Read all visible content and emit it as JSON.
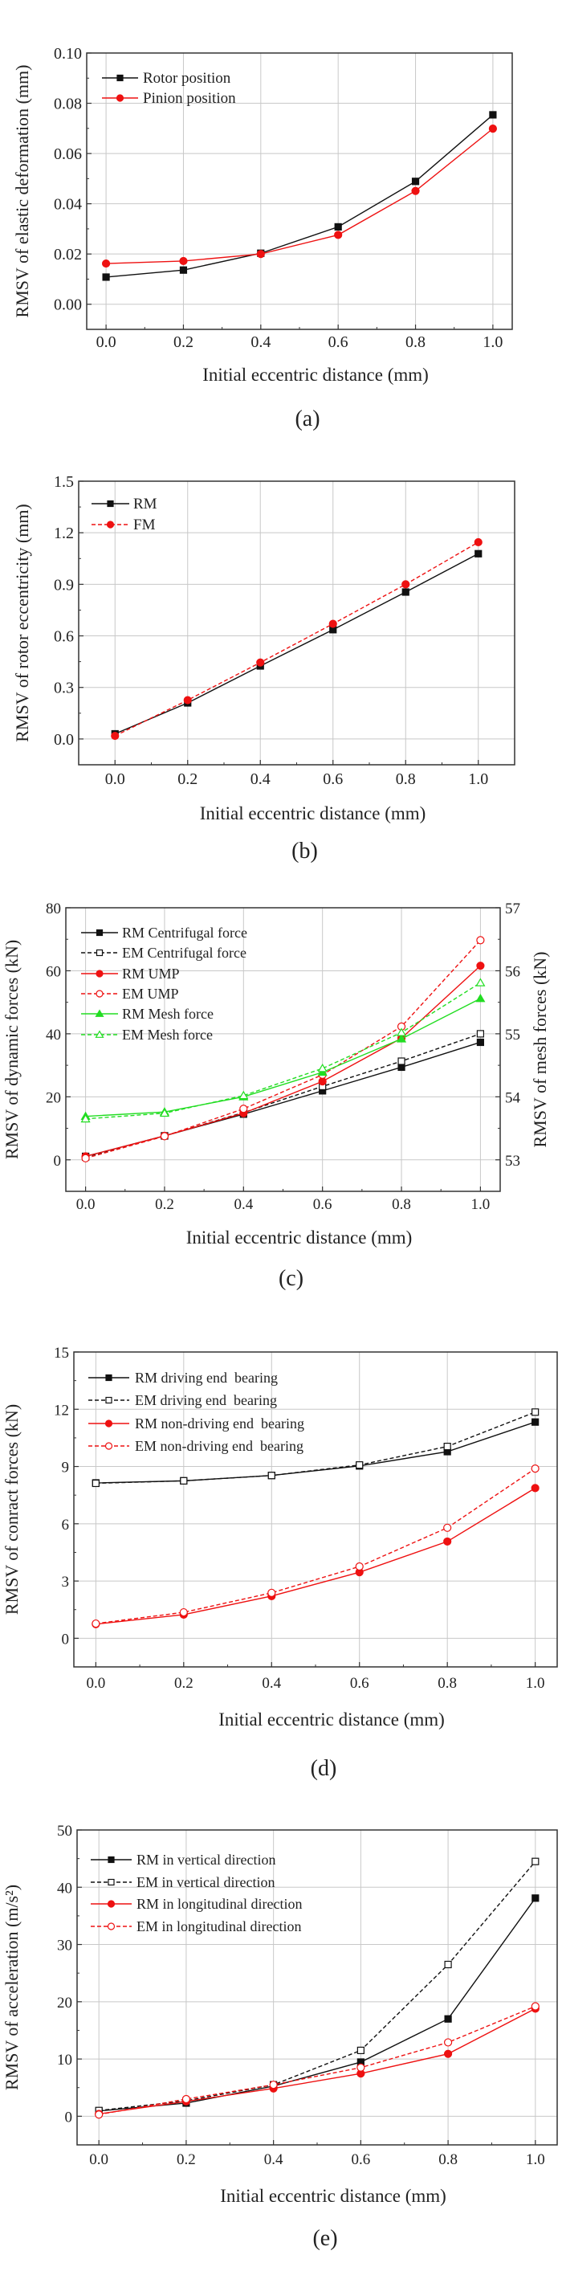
{
  "colors": {
    "black": "#111111",
    "red": "#ee1111",
    "green": "#22dd22",
    "grid": "#cccccc"
  },
  "chart_data": [
    {
      "type": "line",
      "panel_label": "(a)",
      "xlabel": "Initial eccentric distance (mm)",
      "ylabel": "RMSV of elastic deformation (mm)",
      "xlim": [
        -0.05,
        1.05
      ],
      "ylim": [
        -0.01,
        0.1
      ],
      "xticks": [
        0.0,
        0.2,
        0.4,
        0.6,
        0.8,
        1.0
      ],
      "xtick_labels": [
        "0.0",
        "0.2",
        "0.4",
        "0.6",
        "0.8",
        "1.0"
      ],
      "yticks": [
        0.0,
        0.02,
        0.04,
        0.06,
        0.08,
        0.1
      ],
      "ytick_labels": [
        "0.00",
        "0.02",
        "0.04",
        "0.06",
        "0.08",
        "0.10"
      ],
      "grid": true,
      "legend": "top-left",
      "x": [
        0.0,
        0.2,
        0.4,
        0.6,
        0.8,
        1.0
      ],
      "series": [
        {
          "name": "Rotor position",
          "color": "#111111",
          "marker": "square",
          "filled": true,
          "dashed": false,
          "values": [
            0.0108,
            0.0136,
            0.0203,
            0.0308,
            0.0489,
            0.0754
          ]
        },
        {
          "name": "Pinion position",
          "color": "#ee1111",
          "marker": "circle",
          "filled": true,
          "dashed": false,
          "values": [
            0.0162,
            0.0172,
            0.02,
            0.0276,
            0.0451,
            0.0699
          ]
        }
      ]
    },
    {
      "type": "line",
      "panel_label": "(b)",
      "xlabel": "Initial eccentric distance (mm)",
      "ylabel": "RMSV of rotor eccentricity (mm)",
      "xlim": [
        -0.1,
        1.1
      ],
      "ylim": [
        -0.15,
        1.5
      ],
      "xticks": [
        0.0,
        0.2,
        0.4,
        0.6,
        0.8,
        1.0
      ],
      "xtick_labels": [
        "0.0",
        "0.2",
        "0.4",
        "0.6",
        "0.8",
        "1.0"
      ],
      "yticks": [
        0.0,
        0.3,
        0.6,
        0.9,
        1.2,
        1.5
      ],
      "ytick_labels": [
        "0.0",
        "0.3",
        "0.6",
        "0.9",
        "1.2",
        "1.5"
      ],
      "grid": true,
      "legend": "top-left",
      "x": [
        0.0,
        0.2,
        0.4,
        0.6,
        0.8,
        1.0
      ],
      "series": [
        {
          "name": "RM",
          "color": "#111111",
          "marker": "square",
          "filled": true,
          "dashed": false,
          "values": [
            0.03,
            0.21,
            0.425,
            0.636,
            0.855,
            1.078
          ]
        },
        {
          "name": "FM",
          "color": "#ee1111",
          "marker": "circle",
          "filled": true,
          "dashed": true,
          "values": [
            0.018,
            0.226,
            0.445,
            0.67,
            0.9,
            1.145
          ]
        }
      ]
    },
    {
      "type": "line",
      "panel_label": "(c)",
      "xlabel": "Initial eccentric distance (mm)",
      "ylabel": "RMSV of dynamic forces (kN)",
      "ylabel_right": "RMSV of mesh forces (kN)",
      "xlim": [
        -0.05,
        1.05
      ],
      "ylim": [
        -10,
        80
      ],
      "ylim_right": [
        52.5,
        57
      ],
      "xticks": [
        0.0,
        0.2,
        0.4,
        0.6,
        0.8,
        1.0
      ],
      "xtick_labels": [
        "0.0",
        "0.2",
        "0.4",
        "0.6",
        "0.8",
        "1.0"
      ],
      "yticks": [
        0,
        20,
        40,
        60,
        80
      ],
      "ytick_labels": [
        "0",
        "20",
        "40",
        "60",
        "80"
      ],
      "yticks_right": [
        53,
        54,
        55,
        56,
        57
      ],
      "ytick_labels_right": [
        "53",
        "54",
        "55",
        "56",
        "57"
      ],
      "grid": true,
      "legend": "top-left",
      "x": [
        0.0,
        0.2,
        0.4,
        0.6,
        0.8,
        1.0
      ],
      "series": [
        {
          "name": "RM Centrifugal force",
          "color": "#111111",
          "marker": "square",
          "filled": true,
          "dashed": false,
          "axis": "left",
          "values": [
            1.1,
            7.6,
            14.5,
            21.9,
            29.4,
            37.3
          ]
        },
        {
          "name": "EM Centrifugal force",
          "color": "#111111",
          "marker": "square",
          "filled": false,
          "dashed": true,
          "axis": "left",
          "values": [
            0.9,
            7.6,
            15.0,
            23.3,
            31.3,
            40.0
          ]
        },
        {
          "name": "RM UMP",
          "color": "#ee1111",
          "marker": "circle",
          "filled": true,
          "dashed": false,
          "axis": "left",
          "values": [
            1.1,
            7.6,
            14.8,
            24.9,
            38.6,
            61.6
          ]
        },
        {
          "name": "EM UMP",
          "color": "#ee1111",
          "marker": "circle",
          "filled": false,
          "dashed": true,
          "axis": "left",
          "values": [
            0.5,
            7.5,
            16.2,
            27.0,
            42.3,
            69.7
          ]
        },
        {
          "name": "RM Mesh force",
          "color": "#22dd22",
          "marker": "triangle",
          "filled": true,
          "dashed": false,
          "axis": "right",
          "values": [
            53.69,
            53.76,
            54.0,
            54.39,
            54.92,
            55.56
          ]
        },
        {
          "name": "EM Mesh force",
          "color": "#22dd22",
          "marker": "triangle",
          "filled": false,
          "dashed": true,
          "axis": "right",
          "values": [
            53.65,
            53.74,
            54.02,
            54.45,
            55.02,
            55.81
          ]
        }
      ]
    },
    {
      "type": "line",
      "panel_label": "(d)",
      "xlabel": "Initial eccentric distance (mm)",
      "ylabel": "RMSV of conract forces (kN)",
      "xlim": [
        -0.05,
        1.05
      ],
      "ylim": [
        -1.5,
        15
      ],
      "xticks": [
        0.0,
        0.2,
        0.4,
        0.6,
        0.8,
        1.0
      ],
      "xtick_labels": [
        "0.0",
        "0.2",
        "0.4",
        "0.6",
        "0.8",
        "1.0"
      ],
      "yticks": [
        0,
        3,
        6,
        9,
        12,
        15
      ],
      "ytick_labels": [
        "0",
        "3",
        "6",
        "9",
        "12",
        "15"
      ],
      "grid": true,
      "legend": "top-left",
      "x": [
        0.0,
        0.2,
        0.4,
        0.6,
        0.8,
        1.0
      ],
      "series": [
        {
          "name": "RM driving end  bearing",
          "color": "#111111",
          "marker": "square",
          "filled": true,
          "dashed": false,
          "values": [
            8.14,
            8.25,
            8.53,
            9.03,
            9.78,
            11.33
          ]
        },
        {
          "name": "EM driving end  bearing",
          "color": "#111111",
          "marker": "square",
          "filled": false,
          "dashed": true,
          "values": [
            8.12,
            8.25,
            8.53,
            9.08,
            10.05,
            11.85
          ]
        },
        {
          "name": "RM non-driving end  bearing",
          "color": "#ee1111",
          "marker": "circle",
          "filled": true,
          "dashed": false,
          "values": [
            0.74,
            1.24,
            2.21,
            3.46,
            5.07,
            7.87
          ]
        },
        {
          "name": "EM non-driving end  bearing",
          "color": "#ee1111",
          "marker": "circle",
          "filled": false,
          "dashed": true,
          "values": [
            0.77,
            1.36,
            2.38,
            3.76,
            5.79,
            8.89
          ]
        }
      ]
    },
    {
      "type": "line",
      "panel_label": "(e)",
      "xlabel": "Initial eccentric distance (mm)",
      "ylabel": "RMSV of acceleration (m/s²)",
      "xlim": [
        -0.05,
        1.05
      ],
      "ylim": [
        -5,
        50
      ],
      "xticks": [
        0.0,
        0.2,
        0.4,
        0.6,
        0.8,
        1.0
      ],
      "xtick_labels": [
        "0.0",
        "0.2",
        "0.4",
        "0.6",
        "0.8",
        "1.0"
      ],
      "yticks": [
        0,
        10,
        20,
        30,
        40,
        50
      ],
      "ytick_labels": [
        "0",
        "10",
        "20",
        "30",
        "40",
        "50"
      ],
      "grid": true,
      "legend": "top-left",
      "x": [
        0.0,
        0.2,
        0.4,
        0.6,
        0.8,
        1.0
      ],
      "series": [
        {
          "name": "RM in vertical direction",
          "color": "#111111",
          "marker": "square",
          "filled": true,
          "dashed": false,
          "values": [
            0.92,
            2.3,
            5.27,
            9.46,
            17.0,
            38.1
          ]
        },
        {
          "name": "EM in vertical direction",
          "color": "#111111",
          "marker": "square",
          "filled": false,
          "dashed": true,
          "values": [
            1.0,
            2.7,
            5.5,
            11.5,
            26.5,
            44.5
          ]
        },
        {
          "name": "RM in longitudinal direction",
          "color": "#ee1111",
          "marker": "circle",
          "filled": true,
          "dashed": false,
          "values": [
            0.4,
            2.6,
            4.86,
            7.46,
            10.9,
            18.8
          ]
        },
        {
          "name": "EM in longitudinal direction",
          "color": "#ee1111",
          "marker": "circle",
          "filled": false,
          "dashed": true,
          "values": [
            0.3,
            3.0,
            5.5,
            8.5,
            12.9,
            19.2
          ]
        }
      ]
    }
  ]
}
